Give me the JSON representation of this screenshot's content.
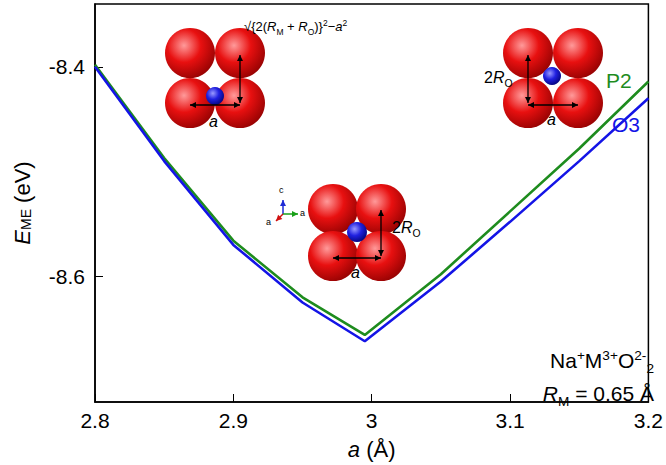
{
  "chart_data": {
    "type": "line",
    "x_label": [
      {
        "text": "a",
        "italic": true
      },
      {
        "text": " (Å)"
      }
    ],
    "y_label": [
      {
        "text": "E",
        "italic": true
      },
      {
        "text": "ME",
        "sub": true
      },
      {
        "text": " (eV)"
      }
    ],
    "xlim": [
      2.8,
      3.2
    ],
    "xticks": [
      2.8,
      2.9,
      3,
      3.1,
      3.2
    ],
    "ylim": [
      -8.72,
      -8.34
    ],
    "yticks": [
      -8.6,
      -8.4
    ],
    "grid": false,
    "x": [
      2.8,
      2.85,
      2.9,
      2.95,
      2.995,
      3.05,
      3.1,
      3.15,
      3.2
    ],
    "series": [
      {
        "name": "P2",
        "color": "#1e8c1e",
        "line_style": "solid",
        "values": [
          -8.398,
          -8.487,
          -8.566,
          -8.62,
          -8.656,
          -8.598,
          -8.538,
          -8.478,
          -8.414
        ]
      },
      {
        "name": "O3",
        "color": "#1414e6",
        "line_style": "solid",
        "values": [
          -8.4,
          -8.49,
          -8.57,
          -8.625,
          -8.662,
          -8.605,
          -8.548,
          -8.49,
          -8.43
        ]
      }
    ],
    "annotations": [
      {
        "segments": [
          {
            "text": "Na"
          },
          {
            "text": "+",
            "sup": true
          },
          {
            "text": "M"
          },
          {
            "text": "3+",
            "sup": true
          },
          {
            "text": "O"
          },
          {
            "text": "2-",
            "sup": true
          },
          {
            "text": "2",
            "sub": true
          }
        ]
      },
      {
        "segments": [
          {
            "text": "R",
            "italic": true
          },
          {
            "text": "M",
            "sub": true
          },
          {
            "text": " = 0.65 Å"
          }
        ]
      }
    ],
    "insets": [
      {
        "labels": [
          {
            "segments": [
              {
                "text": "√{2("
              },
              {
                "text": "R",
                "italic": true
              },
              {
                "text": "M",
                "sub": true
              },
              {
                "text": " + "
              },
              {
                "text": "R",
                "italic": true
              },
              {
                "text": "O",
                "sub": true
              },
              {
                "text": ")}"
              },
              {
                "text": "2",
                "sup": true
              },
              {
                "text": "−"
              },
              {
                "text": "a",
                "italic": true
              },
              {
                "text": "2",
                "sup": true
              }
            ]
          },
          {
            "segments": [
              {
                "text": "a",
                "italic": true
              }
            ]
          }
        ]
      },
      {
        "labels": [
          {
            "segments": [
              {
                "text": "2"
              },
              {
                "text": "R",
                "italic": true
              },
              {
                "text": "O",
                "sub": true
              }
            ]
          },
          {
            "segments": [
              {
                "text": "a",
                "italic": true
              }
            ]
          }
        ]
      },
      {
        "labels": [
          {
            "segments": [
              {
                "text": "2"
              },
              {
                "text": "R",
                "italic": true
              },
              {
                "text": "O",
                "sub": true
              }
            ]
          },
          {
            "segments": [
              {
                "text": "a",
                "italic": true
              }
            ]
          }
        ]
      },
      {
        "labels": [
          {
            "segments": [
              {
                "text": "c"
              }
            ]
          },
          {
            "segments": [
              {
                "text": "a"
              }
            ]
          },
          {
            "segments": [
              {
                "text": "a"
              }
            ]
          }
        ]
      }
    ]
  }
}
